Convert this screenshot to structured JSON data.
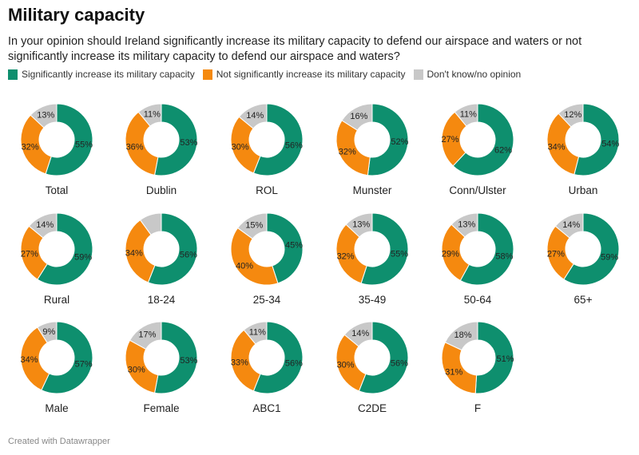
{
  "title": "Military capacity",
  "subtitle": "In your opinion should Ireland significantly increase its military capacity to defend our airspace and waters or not significantly increase its military capacity to defend our airspace and waters?",
  "footer": "Created with Datawrapper",
  "chart_data": {
    "type": "pie",
    "variant": "donut",
    "legend_position": "top-left",
    "series": [
      {
        "name": "Significantly increase its military capacity",
        "color": "#0e8f6e"
      },
      {
        "name": "Not significantly increase its military capacity",
        "color": "#f5890f"
      },
      {
        "name": "Don't know/no opinion",
        "color": "#c8c8c8"
      }
    ],
    "charts": [
      {
        "label": "Total",
        "values": [
          55,
          32,
          13
        ]
      },
      {
        "label": "Dublin",
        "values": [
          53,
          36,
          11
        ]
      },
      {
        "label": "ROL",
        "values": [
          56,
          30,
          14
        ]
      },
      {
        "label": "Munster",
        "values": [
          52,
          32,
          16
        ]
      },
      {
        "label": "Conn/Ulster",
        "values": [
          62,
          27,
          11
        ]
      },
      {
        "label": "Urban",
        "values": [
          54,
          34,
          12
        ]
      },
      {
        "label": "Rural",
        "values": [
          59,
          27,
          14
        ]
      },
      {
        "label": "18-24",
        "values": [
          56,
          34,
          10
        ],
        "hidden_labels": [
          2
        ]
      },
      {
        "label": "25-34",
        "values": [
          45,
          40,
          15
        ]
      },
      {
        "label": "35-49",
        "values": [
          55,
          32,
          13
        ]
      },
      {
        "label": "50-64",
        "values": [
          58,
          29,
          13
        ]
      },
      {
        "label": "65+",
        "values": [
          59,
          27,
          14
        ]
      },
      {
        "label": "Male",
        "values": [
          57,
          34,
          9
        ]
      },
      {
        "label": "Female",
        "values": [
          53,
          30,
          17
        ]
      },
      {
        "label": "ABC1",
        "values": [
          56,
          33,
          11
        ]
      },
      {
        "label": "C2DE",
        "values": [
          56,
          30,
          14
        ]
      },
      {
        "label": "F",
        "values": [
          51,
          31,
          18
        ]
      }
    ]
  }
}
